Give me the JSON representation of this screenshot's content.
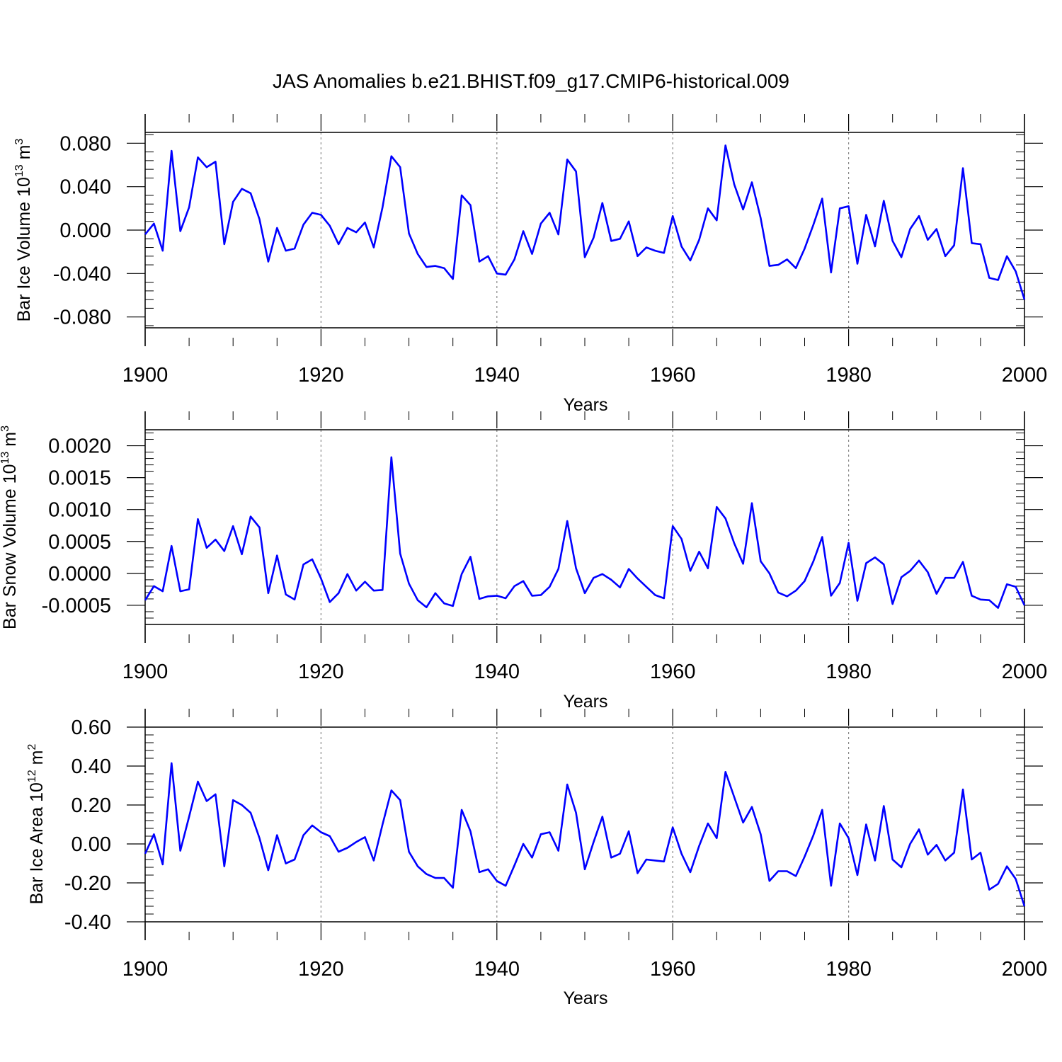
{
  "title": "JAS Anomalies b.e21.BHIST.f09_g17.CMIP6-historical.009",
  "colors": {
    "line": "#0000ff",
    "axis": "#000000",
    "grid": "#888888"
  },
  "chart_data": [
    {
      "type": "line",
      "name": "ice-volume",
      "ylabel": {
        "main": "Bar Ice Volume 10",
        "sup1": "13",
        "mid": " m",
        "sup2": "3"
      },
      "xlabel": "Years",
      "xlim": [
        1900,
        2000
      ],
      "ylim": [
        -0.09,
        0.09
      ],
      "xticks": [
        "1900",
        "1920",
        "1940",
        "1960",
        "1980",
        "2000"
      ],
      "yticks": [
        {
          "v": -0.08,
          "label": "-0.080"
        },
        {
          "v": -0.04,
          "label": "-0.040"
        },
        {
          "v": 0.0,
          "label": "0.000"
        },
        {
          "v": 0.04,
          "label": "0.040"
        },
        {
          "v": 0.08,
          "label": "0.080"
        }
      ],
      "yminor": 0.008,
      "x_start": 1900,
      "values": [
        -0.004,
        0.006,
        -0.019,
        0.073,
        -0.001,
        0.021,
        0.067,
        0.058,
        0.063,
        -0.013,
        0.026,
        0.038,
        0.034,
        0.01,
        -0.029,
        0.002,
        -0.019,
        -0.017,
        0.005,
        0.016,
        0.014,
        0.004,
        -0.013,
        0.002,
        -0.002,
        0.007,
        -0.016,
        0.021,
        0.068,
        0.058,
        -0.003,
        -0.022,
        -0.034,
        -0.033,
        -0.035,
        -0.045,
        0.032,
        0.023,
        -0.029,
        -0.024,
        -0.04,
        -0.041,
        -0.027,
        -0.001,
        -0.022,
        0.006,
        0.016,
        -0.004,
        0.065,
        0.054,
        -0.025,
        -0.007,
        0.025,
        -0.01,
        -0.008,
        0.008,
        -0.024,
        -0.016,
        -0.019,
        -0.021,
        0.013,
        -0.015,
        -0.028,
        -0.009,
        0.02,
        0.009,
        0.078,
        0.042,
        0.019,
        0.044,
        0.011,
        -0.033,
        -0.032,
        -0.027,
        -0.035,
        -0.017,
        0.005,
        0.029,
        -0.039,
        0.02,
        0.022,
        -0.031,
        0.014,
        -0.015,
        0.027,
        -0.01,
        -0.025,
        0.001,
        0.013,
        -0.009,
        0.001,
        -0.024,
        -0.014,
        0.057,
        -0.012,
        -0.013,
        -0.044,
        -0.046,
        -0.024,
        -0.038,
        -0.064
      ]
    },
    {
      "type": "line",
      "name": "snow-volume",
      "ylabel": {
        "main": "Bar Snow Volume 10",
        "sup1": "13",
        "mid": " m",
        "sup2": "3"
      },
      "xlabel": "Years",
      "xlim": [
        1900,
        2000
      ],
      "ylim": [
        -0.0008,
        0.00225
      ],
      "xticks": [
        "1900",
        "1920",
        "1940",
        "1960",
        "1980",
        "2000"
      ],
      "yticks": [
        {
          "v": -0.0005,
          "label": "-0.0005"
        },
        {
          "v": 0.0,
          "label": "0.0000"
        },
        {
          "v": 0.0005,
          "label": "0.0005"
        },
        {
          "v": 0.001,
          "label": "0.0010"
        },
        {
          "v": 0.0015,
          "label": "0.0015"
        },
        {
          "v": 0.002,
          "label": "0.0020"
        }
      ],
      "yminor": 0.0001,
      "x_start": 1900,
      "values": [
        -0.00042,
        -0.0002,
        -0.00028,
        0.00043,
        -0.00028,
        -0.00025,
        0.00085,
        0.0004,
        0.00053,
        0.00035,
        0.00074,
        0.0003,
        0.00089,
        0.00072,
        -0.00031,
        0.00028,
        -0.00033,
        -0.00041,
        0.00014,
        0.00022,
        -8e-05,
        -0.00045,
        -0.00031,
        -1e-05,
        -0.00027,
        -0.00013,
        -0.00027,
        -0.00026,
        0.00182,
        0.00031,
        -0.00016,
        -0.00042,
        -0.00053,
        -0.00031,
        -0.00047,
        -0.00051,
        -1e-05,
        0.00026,
        -0.0004,
        -0.00036,
        -0.00035,
        -0.00039,
        -0.0002,
        -0.00012,
        -0.00035,
        -0.00034,
        -0.00021,
        7e-05,
        0.00082,
        8e-05,
        -0.00031,
        -7e-05,
        -1e-05,
        -0.0001,
        -0.00022,
        7e-05,
        -8e-05,
        -0.00021,
        -0.00034,
        -0.00039,
        0.00074,
        0.00054,
        4e-05,
        0.00034,
        8e-05,
        0.00104,
        0.00086,
        0.00047,
        0.00015,
        0.0011,
        0.00019,
        0.0,
        -0.0003,
        -0.00036,
        -0.00027,
        -0.00012,
        0.00019,
        0.00057,
        -0.00035,
        -0.00015,
        0.00048,
        -0.00043,
        0.00016,
        0.00025,
        0.00014,
        -0.00048,
        -6e-05,
        4e-05,
        0.0002,
        2e-05,
        -0.00032,
        -7e-05,
        -7e-05,
        0.00018,
        -0.00035,
        -0.00041,
        -0.00042,
        -0.00054,
        -0.00017,
        -0.00021,
        -0.0005
      ]
    },
    {
      "type": "line",
      "name": "ice-area",
      "ylabel": {
        "main": "Bar Ice Area 10",
        "sup1": "12",
        "mid": " m",
        "sup2": "2"
      },
      "xlabel": "Years",
      "xlim": [
        1900,
        2000
      ],
      "ylim": [
        -0.4,
        0.6
      ],
      "xticks": [
        "1900",
        "1920",
        "1940",
        "1960",
        "1980",
        "2000"
      ],
      "yticks": [
        {
          "v": -0.4,
          "label": "-0.40"
        },
        {
          "v": -0.2,
          "label": "-0.20"
        },
        {
          "v": 0.0,
          "label": "0.00"
        },
        {
          "v": 0.2,
          "label": "0.20"
        },
        {
          "v": 0.4,
          "label": "0.40"
        },
        {
          "v": 0.6,
          "label": "0.60"
        }
      ],
      "yminor": 0.04,
      "x_start": 1900,
      "values": [
        -0.05,
        0.05,
        -0.105,
        0.415,
        -0.035,
        0.14,
        0.32,
        0.22,
        0.255,
        -0.115,
        0.225,
        0.2,
        0.16,
        0.03,
        -0.135,
        0.045,
        -0.1,
        -0.08,
        0.045,
        0.095,
        0.06,
        0.04,
        -0.04,
        -0.02,
        0.01,
        0.035,
        -0.085,
        0.1,
        0.275,
        0.225,
        -0.04,
        -0.115,
        -0.155,
        -0.175,
        -0.175,
        -0.225,
        0.175,
        0.065,
        -0.145,
        -0.13,
        -0.19,
        -0.215,
        -0.11,
        0.0,
        -0.07,
        0.05,
        0.06,
        -0.035,
        0.305,
        0.16,
        -0.13,
        0.01,
        0.14,
        -0.07,
        -0.05,
        0.065,
        -0.15,
        -0.08,
        -0.085,
        -0.09,
        0.085,
        -0.05,
        -0.145,
        -0.01,
        0.105,
        0.03,
        0.37,
        0.24,
        0.11,
        0.19,
        0.05,
        -0.19,
        -0.14,
        -0.14,
        -0.165,
        -0.065,
        0.045,
        0.175,
        -0.215,
        0.105,
        0.03,
        -0.16,
        0.1,
        -0.085,
        0.195,
        -0.08,
        -0.12,
        0.0,
        0.075,
        -0.055,
        -0.005,
        -0.085,
        -0.045,
        0.28,
        -0.08,
        -0.045,
        -0.235,
        -0.205,
        -0.115,
        -0.18,
        -0.32
      ]
    }
  ]
}
